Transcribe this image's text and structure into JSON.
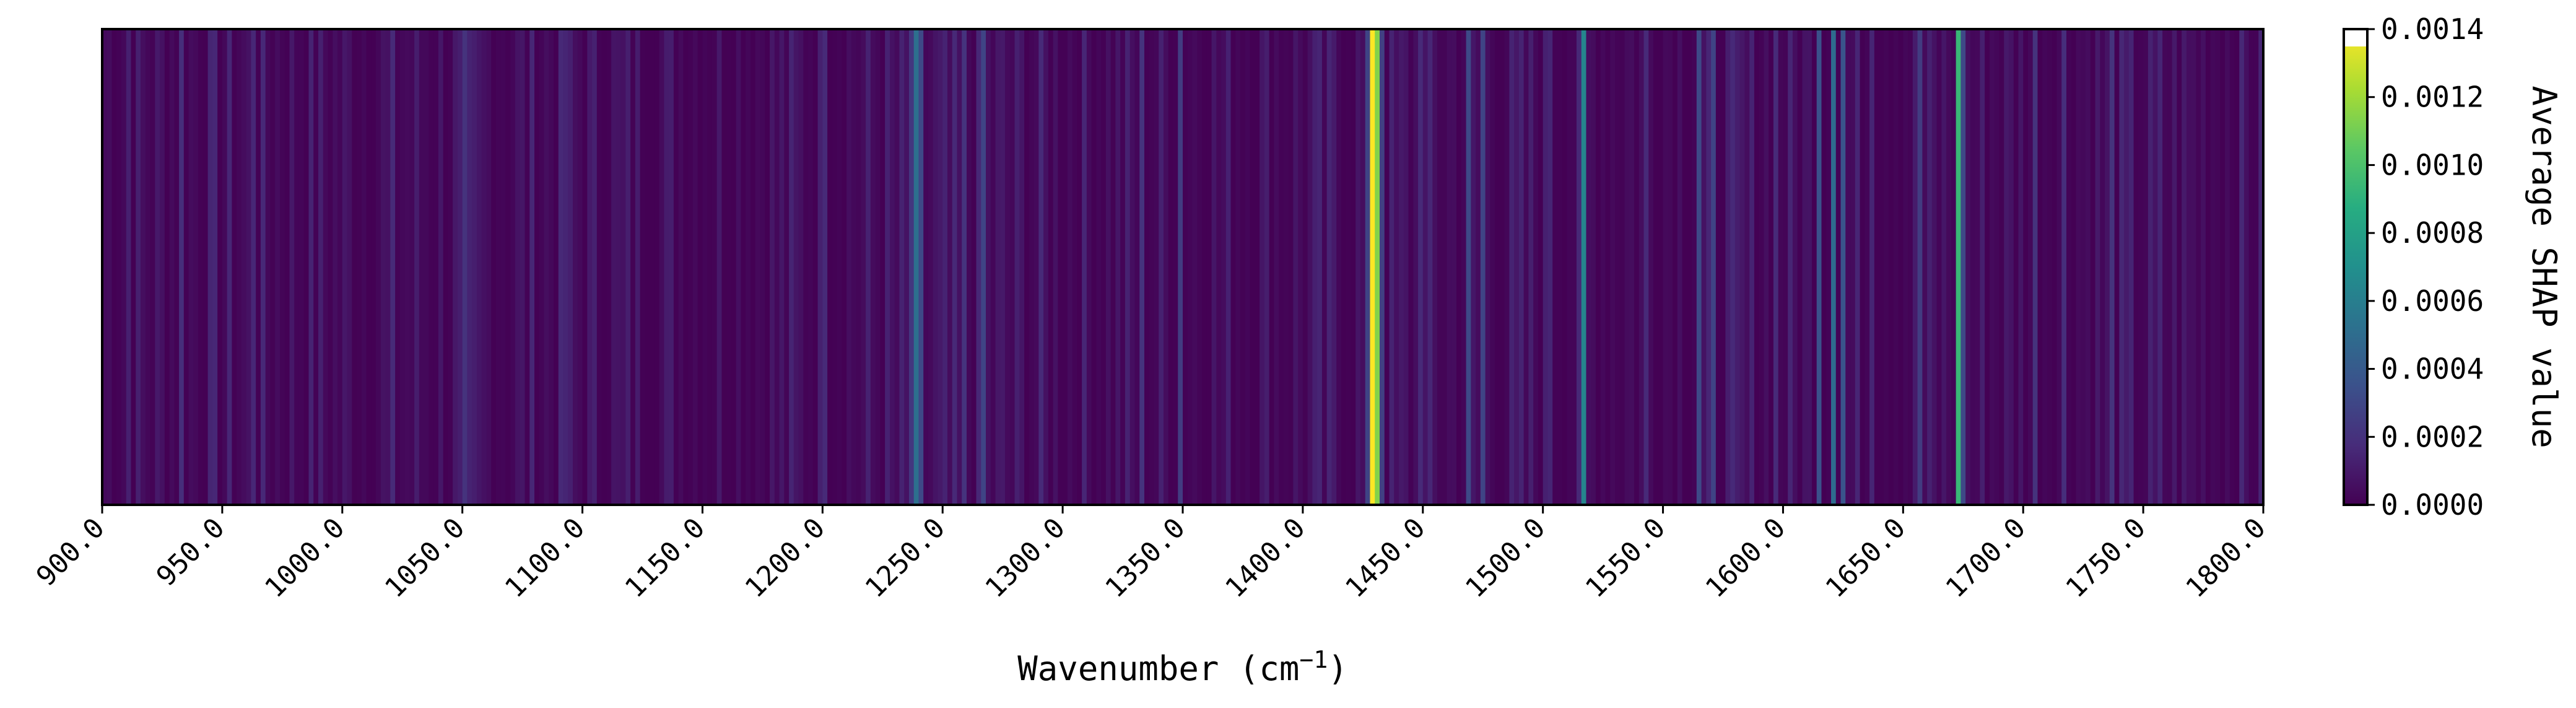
{
  "chart_data": {
    "type": "heatmap",
    "title": "",
    "xlabel": "Wavenumber (cm",
    "xlabel_superscript": "−1",
    "xlabel_close": ")",
    "xlim": [
      900,
      1800
    ],
    "x_ticks": [
      900,
      950,
      1000,
      1050,
      1100,
      1150,
      1200,
      1250,
      1300,
      1350,
      1400,
      1450,
      1500,
      1550,
      1600,
      1650,
      1700,
      1750,
      1800
    ],
    "x_tick_labels": [
      "900.0",
      "950.0",
      "1000.0",
      "1050.0",
      "1100.0",
      "1150.0",
      "1200.0",
      "1250.0",
      "1300.0",
      "1350.0",
      "1400.0",
      "1450.0",
      "1500.0",
      "1550.0",
      "1600.0",
      "1650.0",
      "1700.0",
      "1750.0",
      "1800.0"
    ],
    "colormap": "viridis",
    "colorbar": {
      "label": "Average SHAP value",
      "range": [
        0,
        0.00135
      ],
      "ticks": [
        0,
        0.0002,
        0.0004,
        0.0006,
        0.0008,
        0.001,
        0.0012,
        0.0014
      ],
      "tick_labels": [
        "0.0000",
        "0.0002",
        "0.0004",
        "0.0006",
        "0.0008",
        "0.0010",
        "0.0012",
        "0.0014"
      ]
    },
    "x_step": 2,
    "peaks": [
      {
        "x": 910,
        "value": 0.00012
      },
      {
        "x": 932,
        "value": 0.00018
      },
      {
        "x": 962,
        "value": 0.00015
      },
      {
        "x": 1020,
        "value": 0.00016
      },
      {
        "x": 1050,
        "value": 0.0002
      },
      {
        "x": 1092,
        "value": 0.00014
      },
      {
        "x": 1200,
        "value": 0.00016
      },
      {
        "x": 1236,
        "value": 0.00022
      },
      {
        "x": 1238,
        "value": 0.0005
      },
      {
        "x": 1240,
        "value": 0.0003
      },
      {
        "x": 1258,
        "value": 0.0002
      },
      {
        "x": 1266,
        "value": 0.00028
      },
      {
        "x": 1290,
        "value": 0.00016
      },
      {
        "x": 1332,
        "value": 0.0002
      },
      {
        "x": 1348,
        "value": 0.00024
      },
      {
        "x": 1426,
        "value": 0.00028
      },
      {
        "x": 1428,
        "value": 0.00135
      },
      {
        "x": 1430,
        "value": 0.0011
      },
      {
        "x": 1432,
        "value": 0.00026
      },
      {
        "x": 1448,
        "value": 0.00016
      },
      {
        "x": 1468,
        "value": 0.0003
      },
      {
        "x": 1474,
        "value": 0.00028
      },
      {
        "x": 1502,
        "value": 0.00014
      },
      {
        "x": 1516,
        "value": 0.00062
      },
      {
        "x": 1542,
        "value": 0.00016
      },
      {
        "x": 1564,
        "value": 0.0003
      },
      {
        "x": 1570,
        "value": 0.00028
      },
      {
        "x": 1596,
        "value": 0.00016
      },
      {
        "x": 1614,
        "value": 0.00034
      },
      {
        "x": 1620,
        "value": 0.00048
      },
      {
        "x": 1624,
        "value": 0.00036
      },
      {
        "x": 1636,
        "value": 0.00014
      },
      {
        "x": 1656,
        "value": 0.00024
      },
      {
        "x": 1672,
        "value": 0.0009
      },
      {
        "x": 1674,
        "value": 0.0003
      },
      {
        "x": 1704,
        "value": 0.0002
      },
      {
        "x": 1716,
        "value": 0.00018
      },
      {
        "x": 1736,
        "value": 0.0002
      },
      {
        "x": 1756,
        "value": 0.00014
      },
      {
        "x": 1790,
        "value": 0.00014
      }
    ]
  }
}
